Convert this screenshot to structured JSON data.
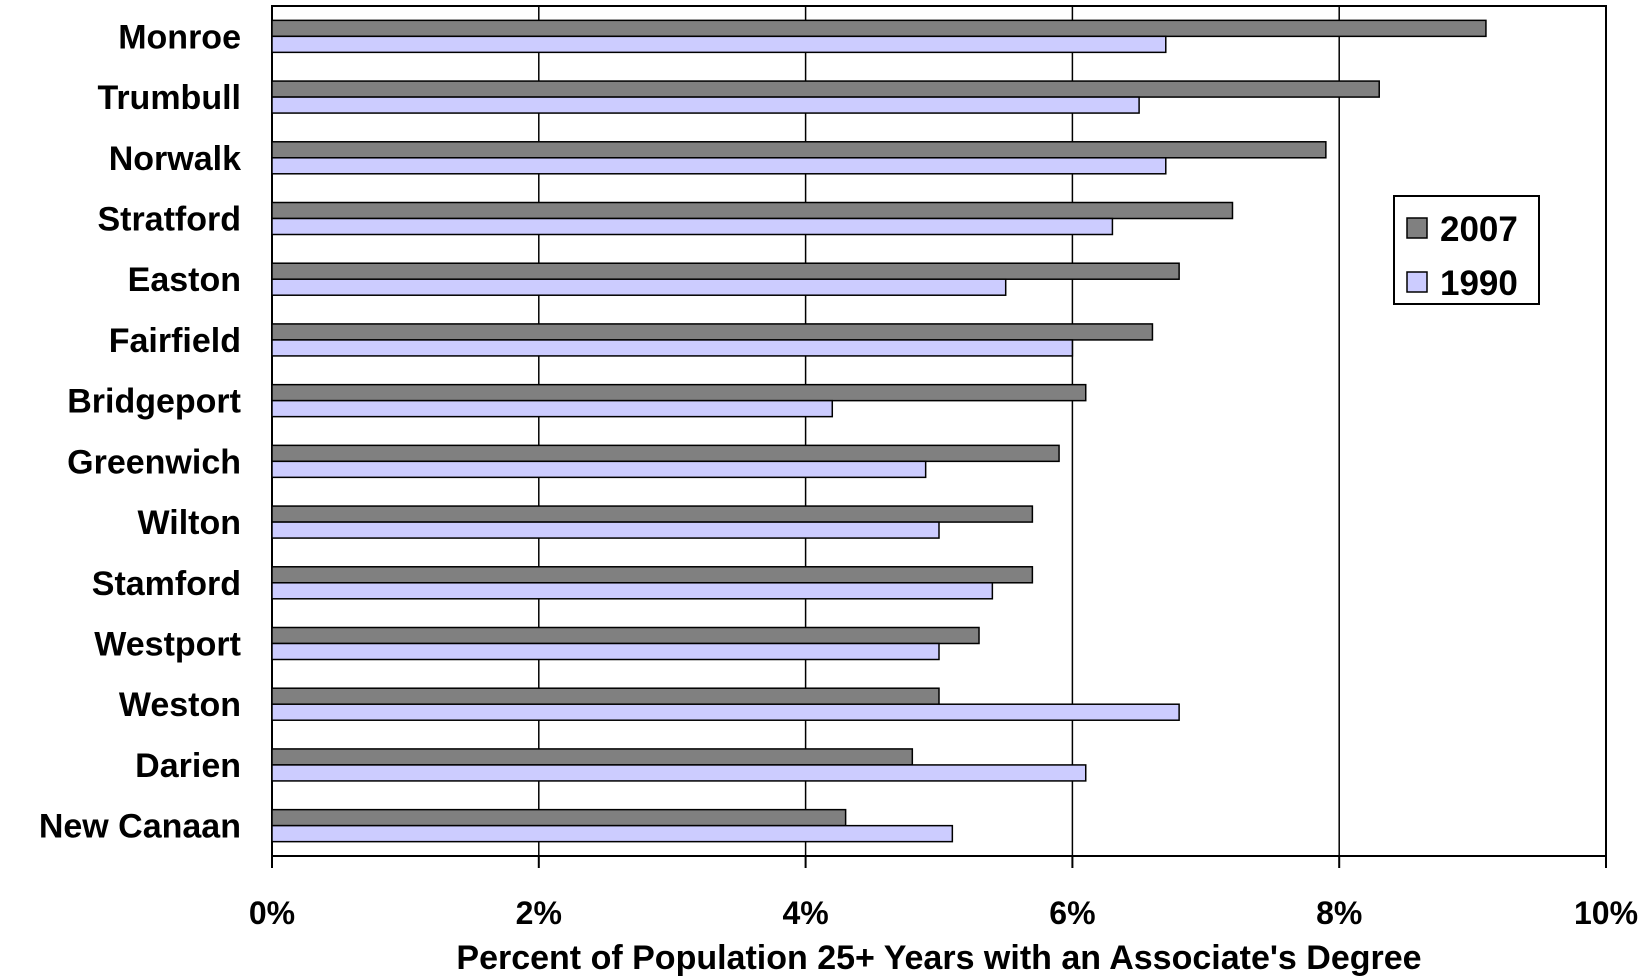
{
  "chart_data": {
    "type": "bar",
    "orientation": "horizontal",
    "categories": [
      "Monroe",
      "Trumbull",
      "Norwalk",
      "Stratford",
      "Easton",
      "Fairfield",
      "Bridgeport",
      "Greenwich",
      "Wilton",
      "Stamford",
      "Westport",
      "Weston",
      "Darien",
      "New Canaan"
    ],
    "series": [
      {
        "name": "2007",
        "color": "#808080",
        "values": [
          9.1,
          8.3,
          7.9,
          7.2,
          6.8,
          6.6,
          6.1,
          5.9,
          5.7,
          5.7,
          5.3,
          5.0,
          4.8,
          4.3
        ]
      },
      {
        "name": "1990",
        "color": "#CCCCFF",
        "values": [
          6.7,
          6.5,
          6.7,
          6.3,
          5.5,
          6.0,
          4.2,
          4.9,
          5.0,
          5.4,
          5.0,
          6.8,
          6.1,
          5.1
        ]
      }
    ],
    "xlim": [
      0,
      10
    ],
    "x_ticks": [
      "0%",
      "2%",
      "4%",
      "6%",
      "8%",
      "10%"
    ],
    "xlabel": "Percent of Population 25+ Years with an Associate's Degree",
    "ylabel": "",
    "title": "",
    "grid": "vertical",
    "legend_position": "right"
  }
}
